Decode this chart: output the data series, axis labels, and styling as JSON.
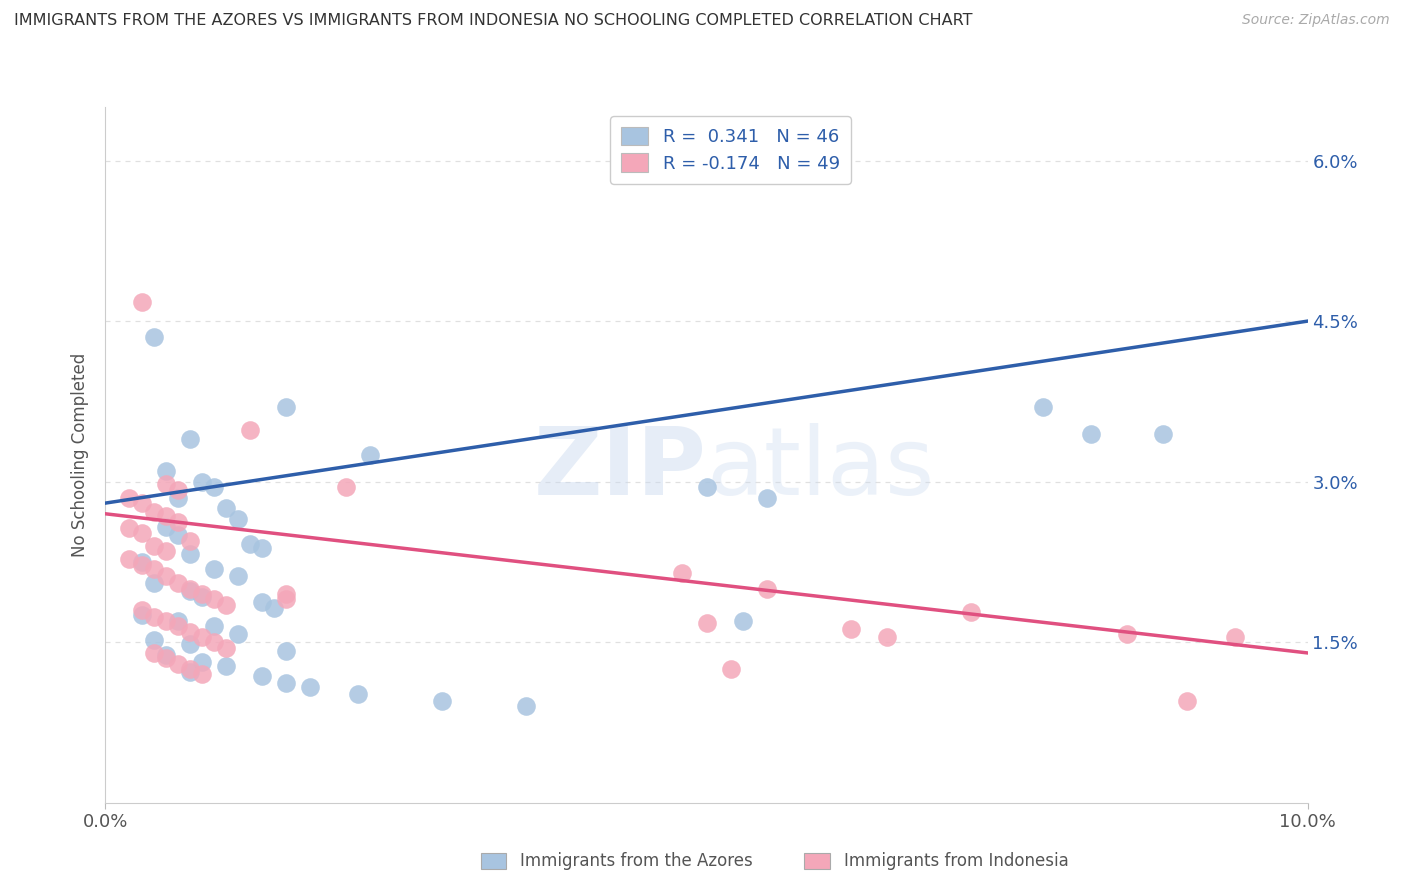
{
  "title": "IMMIGRANTS FROM THE AZORES VS IMMIGRANTS FROM INDONESIA NO SCHOOLING COMPLETED CORRELATION CHART",
  "source": "Source: ZipAtlas.com",
  "ylabel": "No Schooling Completed",
  "legend1_r": "0.341",
  "legend1_n": "46",
  "legend2_r": "-0.174",
  "legend2_n": "49",
  "xmin": 0.0,
  "xmax": 0.1,
  "ymin": 0.0,
  "ymax": 0.065,
  "yticks": [
    0.015,
    0.03,
    0.045,
    0.06
  ],
  "ytick_labels": [
    "1.5%",
    "3.0%",
    "4.5%",
    "6.0%"
  ],
  "blue_color": "#A8C4E0",
  "pink_color": "#F4A7B9",
  "blue_line_color": "#2E5EAA",
  "pink_line_color": "#E05080",
  "blue_scatter": [
    [
      0.004,
      0.0435
    ],
    [
      0.015,
      0.037
    ],
    [
      0.007,
      0.034
    ],
    [
      0.005,
      0.031
    ],
    [
      0.008,
      0.03
    ],
    [
      0.009,
      0.0295
    ],
    [
      0.006,
      0.0285
    ],
    [
      0.01,
      0.0275
    ],
    [
      0.011,
      0.0265
    ],
    [
      0.005,
      0.0258
    ],
    [
      0.006,
      0.025
    ],
    [
      0.012,
      0.0242
    ],
    [
      0.013,
      0.0238
    ],
    [
      0.007,
      0.0232
    ],
    [
      0.022,
      0.0325
    ],
    [
      0.003,
      0.0225
    ],
    [
      0.009,
      0.0218
    ],
    [
      0.011,
      0.0212
    ],
    [
      0.004,
      0.0205
    ],
    [
      0.007,
      0.0198
    ],
    [
      0.008,
      0.0192
    ],
    [
      0.013,
      0.0188
    ],
    [
      0.014,
      0.0182
    ],
    [
      0.003,
      0.0175
    ],
    [
      0.006,
      0.017
    ],
    [
      0.009,
      0.0165
    ],
    [
      0.011,
      0.0158
    ],
    [
      0.004,
      0.0152
    ],
    [
      0.007,
      0.0148
    ],
    [
      0.015,
      0.0142
    ],
    [
      0.005,
      0.0138
    ],
    [
      0.008,
      0.0132
    ],
    [
      0.01,
      0.0128
    ],
    [
      0.007,
      0.0122
    ],
    [
      0.013,
      0.0118
    ],
    [
      0.015,
      0.0112
    ],
    [
      0.017,
      0.0108
    ],
    [
      0.021,
      0.0102
    ],
    [
      0.028,
      0.0095
    ],
    [
      0.035,
      0.009
    ],
    [
      0.05,
      0.0295
    ],
    [
      0.055,
      0.0285
    ],
    [
      0.078,
      0.037
    ],
    [
      0.082,
      0.0345
    ],
    [
      0.088,
      0.0345
    ],
    [
      0.053,
      0.017
    ]
  ],
  "pink_scatter": [
    [
      0.003,
      0.0468
    ],
    [
      0.012,
      0.0348
    ],
    [
      0.005,
      0.0298
    ],
    [
      0.006,
      0.0292
    ],
    [
      0.002,
      0.0285
    ],
    [
      0.003,
      0.028
    ],
    [
      0.004,
      0.0272
    ],
    [
      0.005,
      0.0268
    ],
    [
      0.006,
      0.0262
    ],
    [
      0.002,
      0.0257
    ],
    [
      0.003,
      0.0252
    ],
    [
      0.007,
      0.0245
    ],
    [
      0.004,
      0.024
    ],
    [
      0.005,
      0.0235
    ],
    [
      0.02,
      0.0295
    ],
    [
      0.002,
      0.0228
    ],
    [
      0.003,
      0.0222
    ],
    [
      0.004,
      0.0218
    ],
    [
      0.005,
      0.0212
    ],
    [
      0.006,
      0.0205
    ],
    [
      0.007,
      0.02
    ],
    [
      0.008,
      0.0195
    ],
    [
      0.009,
      0.019
    ],
    [
      0.01,
      0.0185
    ],
    [
      0.003,
      0.018
    ],
    [
      0.004,
      0.0174
    ],
    [
      0.005,
      0.017
    ],
    [
      0.006,
      0.0165
    ],
    [
      0.007,
      0.016
    ],
    [
      0.008,
      0.0155
    ],
    [
      0.009,
      0.015
    ],
    [
      0.01,
      0.0145
    ],
    [
      0.004,
      0.014
    ],
    [
      0.005,
      0.0135
    ],
    [
      0.006,
      0.013
    ],
    [
      0.007,
      0.0125
    ],
    [
      0.008,
      0.012
    ],
    [
      0.015,
      0.0195
    ],
    [
      0.015,
      0.019
    ],
    [
      0.05,
      0.0168
    ],
    [
      0.048,
      0.0215
    ],
    [
      0.052,
      0.0125
    ],
    [
      0.072,
      0.0178
    ],
    [
      0.055,
      0.02
    ],
    [
      0.062,
      0.0162
    ],
    [
      0.065,
      0.0155
    ],
    [
      0.085,
      0.0158
    ],
    [
      0.09,
      0.0095
    ],
    [
      0.094,
      0.0155
    ]
  ],
  "watermark_zip": "ZIP",
  "watermark_atlas": "atlas",
  "background_color": "#ffffff",
  "grid_color": "#e0e0e0",
  "label_bottom_blue": "Immigrants from the Azores",
  "label_bottom_pink": "Immigrants from Indonesia"
}
